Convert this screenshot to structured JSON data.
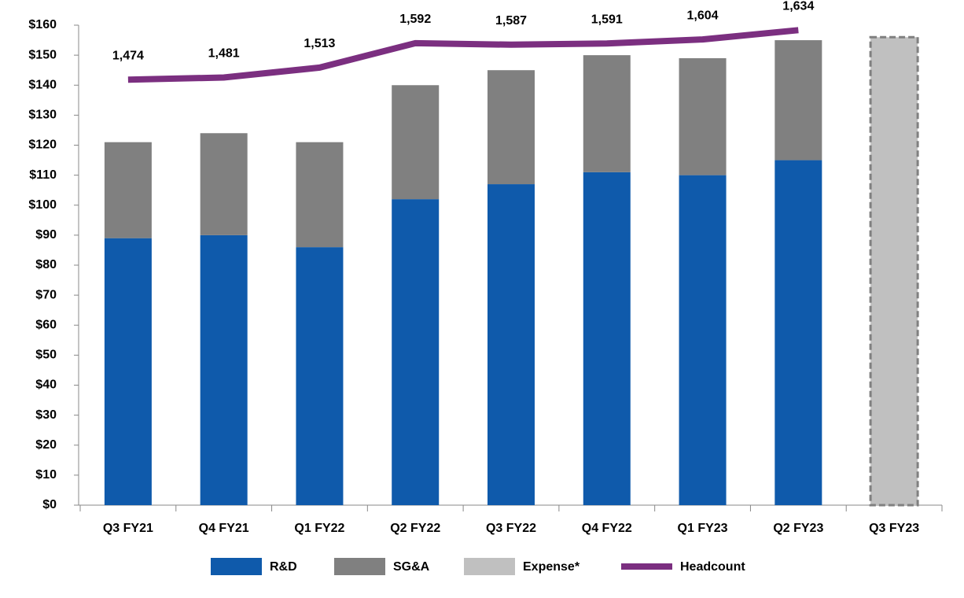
{
  "chart_data": {
    "type": "bar",
    "categories": [
      "Q3 FY21",
      "Q4 FY21",
      "Q1 FY22",
      "Q2 FY22",
      "Q3 FY22",
      "Q4 FY22",
      "Q1 FY23",
      "Q2 FY23",
      "Q3 FY23"
    ],
    "series": [
      {
        "name": "R&D",
        "color": "#0f5aab",
        "values": [
          89,
          90,
          86,
          102,
          107,
          111,
          110,
          115,
          null
        ]
      },
      {
        "name": "SG&A",
        "color": "#808080",
        "values": [
          32,
          34,
          35,
          38,
          38,
          39,
          39,
          40,
          null
        ]
      },
      {
        "name": "Expense*",
        "color": "#c0c0c0",
        "values": [
          null,
          null,
          null,
          null,
          null,
          null,
          null,
          null,
          156
        ]
      },
      {
        "name": "Headcount",
        "type": "line",
        "axis": "y2",
        "color": "#7b2f80",
        "values": [
          1474,
          1481,
          1513,
          1592,
          1587,
          1591,
          1604,
          1634,
          null
        ],
        "value_labels": [
          "1,474",
          "1,481",
          "1,513",
          "1,592",
          "1,587",
          "1,591",
          "1,604",
          "1,634",
          null
        ]
      }
    ],
    "stacked": true,
    "ylim": [
      0,
      160
    ],
    "yticks": [
      {
        "value": 0,
        "label": "$0"
      },
      {
        "value": 10,
        "label": "$10"
      },
      {
        "value": 20,
        "label": "$20"
      },
      {
        "value": 30,
        "label": "$30"
      },
      {
        "value": 40,
        "label": "$40"
      },
      {
        "value": 50,
        "label": "$50"
      },
      {
        "value": 60,
        "label": "$60"
      },
      {
        "value": 70,
        "label": "$70"
      },
      {
        "value": 80,
        "label": "$80"
      },
      {
        "value": 90,
        "label": "$90"
      },
      {
        "value": 100,
        "label": "$100"
      },
      {
        "value": 110,
        "label": "$110"
      },
      {
        "value": 120,
        "label": "$120"
      },
      {
        "value": 130,
        "label": "$130"
      },
      {
        "value": 140,
        "label": "$140"
      },
      {
        "value": 150,
        "label": "$150"
      },
      {
        "value": 160,
        "label": "$160"
      }
    ],
    "y2lim": [
      100,
      1650
    ],
    "legend": "bottom"
  }
}
